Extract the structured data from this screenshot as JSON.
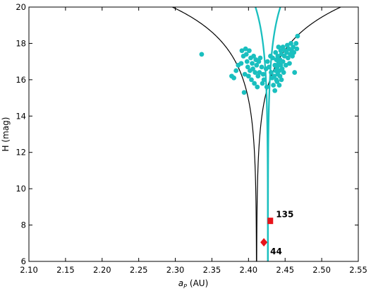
{
  "chart_data": {
    "type": "scatter",
    "title": "",
    "xlabel_math": "a",
    "xlabel_sub": "P",
    "xlabel_unit": "(AU)",
    "ylabel": "H (mag)",
    "xlim": [
      2.1,
      2.55
    ],
    "ylim": [
      6,
      20
    ],
    "xticks": [
      "2.10",
      "2.15",
      "2.20",
      "2.25",
      "2.30",
      "2.35",
      "2.40",
      "2.45",
      "2.50",
      "2.55"
    ],
    "yticks": [
      "6",
      "8",
      "10",
      "12",
      "14",
      "16",
      "18",
      "20"
    ],
    "grid": false,
    "colors": {
      "family": "#1ABFBF",
      "outer_curve": "#000000",
      "marker": "#E8141B"
    },
    "outer_v_curve": {
      "center": 2.411,
      "c": 1.15e-05,
      "label": ""
    },
    "inner_v_curve": {
      "center": 2.4265,
      "c": 1.7e-06,
      "label": ""
    },
    "family_members": [
      [
        2.336,
        17.4
      ],
      [
        2.377,
        16.2
      ],
      [
        2.38,
        16.1
      ],
      [
        2.383,
        16.5
      ],
      [
        2.386,
        16.8
      ],
      [
        2.39,
        16.9
      ],
      [
        2.391,
        17.6
      ],
      [
        2.393,
        17.3
      ],
      [
        2.394,
        15.3
      ],
      [
        2.395,
        16.3
      ],
      [
        2.396,
        17.7
      ],
      [
        2.397,
        17.4
      ],
      [
        2.398,
        17.0
      ],
      [
        2.399,
        16.7
      ],
      [
        2.4,
        16.2
      ],
      [
        2.401,
        17.6
      ],
      [
        2.402,
        16.5
      ],
      [
        2.403,
        17.2
      ],
      [
        2.404,
        16.0
      ],
      [
        2.405,
        16.9
      ],
      [
        2.406,
        16.6
      ],
      [
        2.407,
        17.3
      ],
      [
        2.408,
        15.8
      ],
      [
        2.409,
        16.4
      ],
      [
        2.41,
        17.1
      ],
      [
        2.411,
        16.8
      ],
      [
        2.412,
        15.6
      ],
      [
        2.413,
        16.2
      ],
      [
        2.414,
        17.0
      ],
      [
        2.415,
        16.4
      ],
      [
        2.416,
        17.2
      ],
      [
        2.418,
        16.7
      ],
      [
        2.419,
        15.8
      ],
      [
        2.42,
        16.3
      ],
      [
        2.421,
        16.0
      ],
      [
        2.424,
        16.6
      ],
      [
        2.425,
        15.6
      ],
      [
        2.426,
        17.0
      ],
      [
        2.428,
        16.7
      ],
      [
        2.43,
        17.3
      ],
      [
        2.431,
        16.4
      ],
      [
        2.432,
        16.1
      ],
      [
        2.433,
        17.2
      ],
      [
        2.434,
        15.7
      ],
      [
        2.435,
        16.2
      ],
      [
        2.436,
        16.8
      ],
      [
        2.436,
        15.4
      ],
      [
        2.437,
        17.5
      ],
      [
        2.437,
        16.5
      ],
      [
        2.438,
        16.0
      ],
      [
        2.438,
        17.1
      ],
      [
        2.439,
        15.9
      ],
      [
        2.439,
        16.7
      ],
      [
        2.44,
        17.3
      ],
      [
        2.44,
        16.3
      ],
      [
        2.441,
        17.8
      ],
      [
        2.441,
        16.9
      ],
      [
        2.442,
        16.5
      ],
      [
        2.442,
        15.7
      ],
      [
        2.443,
        17.1
      ],
      [
        2.443,
        16.2
      ],
      [
        2.444,
        17.6
      ],
      [
        2.444,
        16.8
      ],
      [
        2.445,
        16.0
      ],
      [
        2.445,
        17.4
      ],
      [
        2.446,
        16.6
      ],
      [
        2.447,
        17.0
      ],
      [
        2.447,
        17.8
      ],
      [
        2.448,
        16.4
      ],
      [
        2.449,
        17.3
      ],
      [
        2.45,
        17.6
      ],
      [
        2.451,
        16.8
      ],
      [
        2.452,
        17.5
      ],
      [
        2.453,
        17.9
      ],
      [
        2.454,
        17.2
      ],
      [
        2.455,
        17.7
      ],
      [
        2.456,
        16.9
      ],
      [
        2.457,
        17.4
      ],
      [
        2.458,
        18.0
      ],
      [
        2.459,
        17.6
      ],
      [
        2.46,
        17.3
      ],
      [
        2.461,
        17.8
      ],
      [
        2.462,
        17.5
      ],
      [
        2.463,
        16.4
      ],
      [
        2.465,
        18.0
      ],
      [
        2.466,
        17.7
      ],
      [
        2.467,
        18.4
      ]
    ],
    "labeled_asteroids": [
      {
        "label": "135",
        "marker": "square",
        "x": 2.4298,
        "y": 8.23
      },
      {
        "label": "44",
        "marker": "diamond",
        "x": 2.421,
        "y": 7.05
      }
    ]
  }
}
